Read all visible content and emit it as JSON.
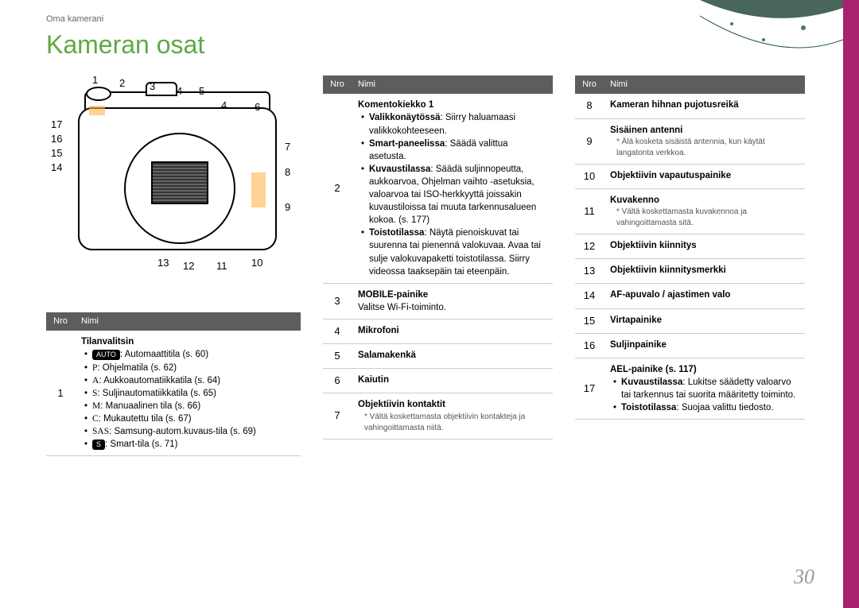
{
  "breadcrumb": "Oma kamerani",
  "pageTitle": "Kameran osat",
  "pageNumber": "30",
  "headers": {
    "nro": "Nro",
    "nimi": "Nimi"
  },
  "colors": {
    "accent": "#5fa843",
    "tableHeader": "#5d5d5d",
    "sidebar": "#a8236f"
  },
  "callouts": {
    "top": [
      "1",
      "2",
      "3",
      "4",
      "5",
      "4",
      "6"
    ],
    "right": [
      "7",
      "8",
      "9"
    ],
    "left": [
      "17",
      "16",
      "15",
      "14"
    ],
    "bottom": [
      "13",
      "12",
      "11",
      "10"
    ]
  },
  "tableA": [
    {
      "n": "1",
      "name": "Tilanvalitsin",
      "modes": [
        {
          "badge": "AUTO",
          "text": ": Automaattitila (s. 60)"
        },
        {
          "letter": "P",
          "text": ": Ohjelmatila (s. 62)"
        },
        {
          "letter": "A",
          "text": ": Aukkoautomatiikkatila (s. 64)"
        },
        {
          "letter": "S",
          "text": ": Suljinautomatiikkatila (s. 65)"
        },
        {
          "letter": "M",
          "text": ": Manuaalinen tila (s. 66)"
        },
        {
          "letter": "C",
          "text": ": Mukautettu tila (s. 67)"
        },
        {
          "letter": "SAS",
          "text": ": Samsung-autom.kuvaus-tila (s. 69)"
        },
        {
          "badge": "S",
          "text": ": Smart-tila (s. 71)"
        }
      ]
    }
  ],
  "tableB": [
    {
      "n": "2",
      "name": "Komentokiekko 1",
      "bullets": [
        {
          "bold": "Valikkonäytössä",
          "rest": ": Siirry haluamaasi valikkokohteeseen."
        },
        {
          "bold": "Smart-paneelissa",
          "rest": ": Säädä valittua asetusta."
        },
        {
          "bold": "Kuvaustilassa",
          "rest": ": Säädä suljinnopeutta, aukkoarvoa, Ohjelman vaihto -asetuksia, valoarvoa tai ISO-herkkyyttä joissakin kuvaustiloissa tai muuta tarkennusalueen kokoa. (s. 177)"
        },
        {
          "bold": "Toistotilassa",
          "rest": ": Näytä pienoiskuvat tai suurenna tai pienennä valokuvaa. Avaa tai sulje valokuvapaketti toistotilassa. Siirry videossa taaksepäin tai eteenpäin."
        }
      ]
    },
    {
      "n": "3",
      "name": "MOBILE-painike",
      "plain": "Valitse Wi-Fi-toiminto."
    },
    {
      "n": "4",
      "name": "Mikrofoni"
    },
    {
      "n": "5",
      "name": "Salamakenkä"
    },
    {
      "n": "6",
      "name": "Kaiutin"
    },
    {
      "n": "7",
      "name": "Objektiivin kontaktit",
      "note": "Vältä koskettamasta objektiivin kontakteja ja vahingoittamasta niitä."
    }
  ],
  "tableC": [
    {
      "n": "8",
      "name": "Kameran hihnan pujotusreikä"
    },
    {
      "n": "9",
      "name": "Sisäinen antenni",
      "note": "Älä kosketa sisäistä antennia, kun käytät langatonta verkkoa."
    },
    {
      "n": "10",
      "name": "Objektiivin vapautuspainike"
    },
    {
      "n": "11",
      "name": "Kuvakenno",
      "note": "Vältä koskettamasta kuvakennoa ja vahingoittamasta sitä."
    },
    {
      "n": "12",
      "name": "Objektiivin kiinnitys"
    },
    {
      "n": "13",
      "name": "Objektiivin kiinnitysmerkki"
    },
    {
      "n": "14",
      "name": "AF-apuvalo / ajastimen valo"
    },
    {
      "n": "15",
      "name": "Virtapainike"
    },
    {
      "n": "16",
      "name": "Suljinpainike"
    },
    {
      "n": "17",
      "name": "AEL-painike (s. 117)",
      "bullets": [
        {
          "bold": "Kuvaustilassa",
          "rest": ": Lukitse säädetty valoarvo tai tarkennus tai suorita määritetty toiminto."
        },
        {
          "bold": "Toistotilassa",
          "rest": ": Suojaa valittu tiedosto."
        }
      ]
    }
  ]
}
